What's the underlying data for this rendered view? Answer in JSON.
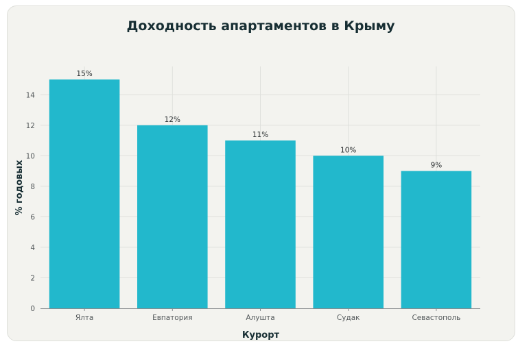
{
  "chart_data": {
    "type": "bar",
    "title": "Доходность апартаментов в Крыму",
    "xlabel": "Курорт",
    "ylabel": "% годовых",
    "categories": [
      "Ялта",
      "Евпатория",
      "Алушта",
      "Судак",
      "Севастополь"
    ],
    "values": [
      15,
      12,
      11,
      10,
      9
    ],
    "data_labels": [
      "15%",
      "12%",
      "11%",
      "10%",
      "9%"
    ],
    "yticks": [
      "0",
      "2",
      "4",
      "6",
      "8",
      "10",
      "12",
      "14"
    ],
    "ytick_values": [
      0,
      2,
      4,
      6,
      8,
      10,
      12,
      14
    ],
    "ylim": [
      0,
      15.5
    ],
    "grid": true,
    "colors": {
      "bar": "#22b8cc",
      "background": "#f3f3ef",
      "grid": "#dfe0dc",
      "axis": "#888c8e",
      "text": "#172e33"
    }
  }
}
